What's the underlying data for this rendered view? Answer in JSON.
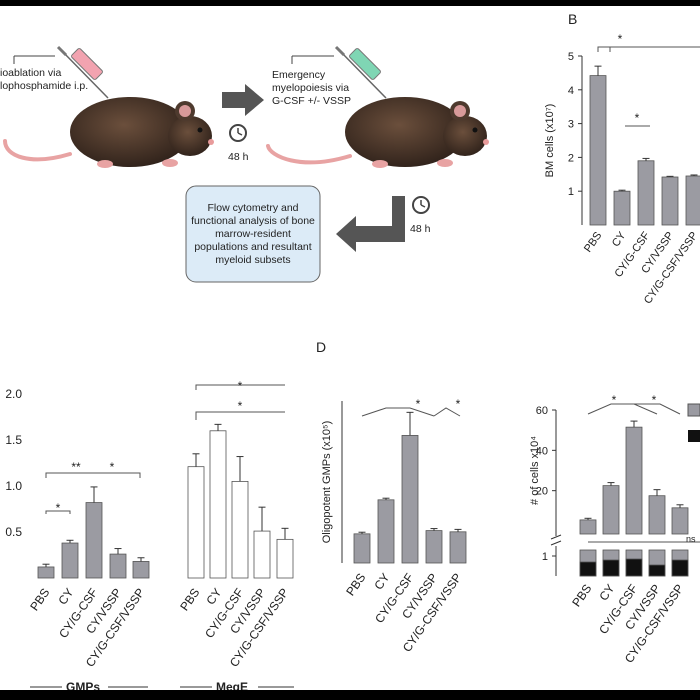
{
  "panel_letters": {
    "b": "B",
    "d": "D"
  },
  "schematic": {
    "step1": [
      "ioablation via",
      "lophosphamide i.p."
    ],
    "step2": [
      "Emergency",
      "myelopoiesis via",
      "G-CSF +/- VSSP"
    ],
    "time1": "48 h",
    "time2": "48 h",
    "box": "Flow cytometry and functional analysis of bone marrow-resident populations and resultant myeloid subsets"
  },
  "labels": {
    "group_gmps": "GMPs",
    "group_mege": "MegE",
    "ns": "ns",
    "star": "*",
    "dstar": "**"
  },
  "colors": {
    "gray_bar": "#9b9ba2",
    "black_bar": "#111111",
    "white_bar": "#ffffff",
    "axis": "#333333"
  },
  "chart_data": [
    {
      "id": "B",
      "type": "bar",
      "ylabel": "BM cells (x10⁷)",
      "ylim": [
        0,
        5
      ],
      "yticks": [
        "1",
        "2",
        "3",
        "4",
        "5"
      ],
      "categories": [
        "PBS",
        "CY",
        "CY/G-CSF",
        "CY/VSSP",
        "CY/G-CSF/VSSP"
      ],
      "values": [
        4.42,
        1.0,
        1.9,
        1.42,
        1.45
      ],
      "errors": [
        0.28,
        0.03,
        0.07,
        0.02,
        0.03
      ]
    },
    {
      "id": "C",
      "type": "bar",
      "ylim": [
        0,
        2.0
      ],
      "yticks": [
        "0.5",
        "1.0",
        "1.5",
        "2.0"
      ],
      "groups": [
        "GMPs",
        "MegE"
      ],
      "categories": [
        "PBS",
        "CY",
        "CY/G-CSF",
        "CY/VSSP",
        "CY/G-CSF/VSSP"
      ],
      "series": [
        {
          "name": "GMPs",
          "values": [
            0.12,
            0.38,
            0.82,
            0.26,
            0.18
          ],
          "errors": [
            0.03,
            0.03,
            0.17,
            0.06,
            0.04
          ]
        },
        {
          "name": "MegE",
          "values": [
            1.21,
            1.6,
            1.05,
            0.51,
            0.42
          ],
          "errors": [
            0.14,
            0.07,
            0.27,
            0.26,
            0.12
          ]
        }
      ]
    },
    {
      "id": "D",
      "type": "bar",
      "ylabel": "Oligopotent GMPs (x10⁵)",
      "ylim": [
        0,
        4
      ],
      "categories": [
        "PBS",
        "CY",
        "CY/G-CSF",
        "CY/VSSP",
        "CY/G-CSF/VSSP"
      ],
      "values": [
        0.72,
        1.56,
        3.15,
        0.8,
        0.77
      ],
      "errors": [
        0.04,
        0.04,
        0.57,
        0.05,
        0.06
      ]
    },
    {
      "id": "E",
      "type": "bar",
      "ylabel": "# of cells x10⁴",
      "yticks_upper": [
        "20",
        "40",
        "60"
      ],
      "yticks_lower": [
        "1"
      ],
      "categories": [
        "PBS",
        "CY",
        "CY/G-CSF",
        "CY/VSSP",
        "CY/G-CSF/VSSP"
      ],
      "series": [
        {
          "name": "",
          "values": [
            5.5,
            22.5,
            51.5,
            17.5,
            11.5
          ],
          "errors": [
            0.8,
            1.5,
            3.0,
            3.0,
            1.5
          ]
        },
        {
          "name": "",
          "values": [
            0.7,
            0.8,
            0.85,
            0.55,
            0.8
          ],
          "errors": [
            0.15,
            0.15,
            0.15,
            0.15,
            0.15
          ]
        }
      ]
    }
  ]
}
